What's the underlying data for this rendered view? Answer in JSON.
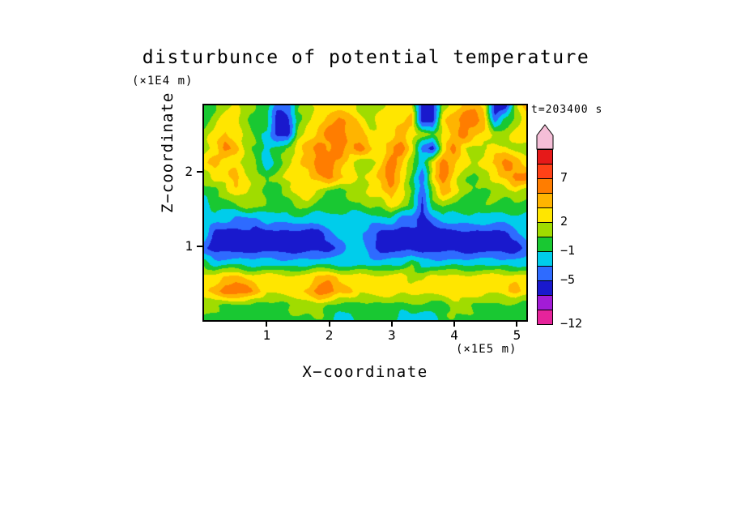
{
  "title": "disturbunce of potential temperature",
  "time_label": "t=203400 s",
  "y_axis_unit": "(×1E4 m)",
  "x_axis_unit": "(×1E5 m)",
  "x_axis": {
    "label": "X−coordinate",
    "ticks": [
      "1",
      "2",
      "3",
      "4",
      "5"
    ],
    "tick_values": [
      1,
      2,
      3,
      4,
      5
    ],
    "range": [
      0,
      5.15
    ]
  },
  "z_axis": {
    "label": "Z−coordinate",
    "ticks": [
      "1",
      "2"
    ],
    "tick_values": [
      1,
      2
    ],
    "range": [
      0,
      2.9
    ]
  },
  "colorbar": {
    "arrow_color": "#F5BED7",
    "labels": [
      {
        "text": "7",
        "level_index": 10
      },
      {
        "text": "2",
        "level_index": 7
      },
      {
        "text": "−1",
        "level_index": 5
      },
      {
        "text": "−5",
        "level_index": 3
      },
      {
        "text": "−12",
        "level_index": 0
      }
    ]
  },
  "chart_data": {
    "type": "heatmap",
    "title": "disturbunce of potential temperature",
    "xlabel": "X−coordinate (×1E5 m)",
    "ylabel": "Z−coordinate (×1E4 m)",
    "time": "t=203400 s",
    "x_range": [
      0,
      5.15
    ],
    "z_range": [
      0,
      2.9
    ],
    "levels": [
      -12,
      -9,
      -7,
      -5,
      -3,
      -1,
      0.5,
      2,
      3.5,
      5,
      7,
      9
    ],
    "level_top": 12,
    "colors": [
      "#E6239B",
      "#A21CD6",
      "#1919CD",
      "#2E6BFF",
      "#00CDEB",
      "#19C832",
      "#A0DC00",
      "#FFE600",
      "#FFB400",
      "#FF7D00",
      "#FF4117",
      "#E61919"
    ],
    "overflow_color": "#F5BED7",
    "grid_orientation": "rows from z=2.9 (top) to z=0 (bottom), 32 columns x=0..5.15",
    "grid_values": [
      [
        0,
        0,
        1.2,
        2.7,
        1.2,
        0,
        0,
        -4,
        -4,
        0,
        1.2,
        2.7,
        2.7,
        2.7,
        2.7,
        1.2,
        1.2,
        1.2,
        2.7,
        2.7,
        2.7,
        -6,
        -6,
        1.2,
        2.7,
        4.2,
        4.2,
        2.7,
        -6,
        -6,
        1.2,
        4.2
      ],
      [
        0,
        1.2,
        2.7,
        2.7,
        1.2,
        0,
        0,
        -6,
        -6,
        0,
        1.2,
        2.7,
        4.2,
        6,
        4.2,
        2.7,
        1.2,
        2.7,
        2.7,
        2.7,
        4.2,
        -6,
        -6,
        2.7,
        4.2,
        6,
        6,
        4.2,
        -4,
        0,
        1.2,
        2.7
      ],
      [
        1.2,
        2.7,
        4.2,
        2.7,
        1.2,
        0,
        -2,
        -6,
        -6,
        1.2,
        2.7,
        4.2,
        6,
        6,
        4.2,
        4.2,
        2.7,
        2.7,
        2.7,
        4.2,
        2.7,
        1.2,
        0,
        2.7,
        4.2,
        6,
        4.2,
        2.7,
        1.2,
        1.2,
        2.7,
        2.7
      ],
      [
        1.2,
        2.7,
        6,
        4.2,
        1.2,
        0,
        -2,
        0,
        1.2,
        2.7,
        4.2,
        6,
        4.2,
        6,
        4.2,
        6,
        4.2,
        2.7,
        4.2,
        6,
        2.7,
        -4,
        -6,
        2.7,
        6,
        2.7,
        1.2,
        1.2,
        2.7,
        2.7,
        1.2,
        1.2
      ],
      [
        2.7,
        4.2,
        2.7,
        2.7,
        1.2,
        0,
        -2,
        0,
        1.2,
        2.7,
        4.2,
        6,
        6,
        4.2,
        2.7,
        1.2,
        1.2,
        2.7,
        6,
        4.2,
        1.2,
        -2,
        2.7,
        6,
        4.2,
        2.7,
        1.2,
        2.7,
        4.2,
        6,
        4.2,
        2.7
      ],
      [
        1.2,
        2.7,
        2.7,
        4.2,
        2.7,
        1.2,
        0,
        1.2,
        2.7,
        2.7,
        2.7,
        4.2,
        6,
        4.2,
        2.7,
        1.2,
        2.7,
        4.2,
        6,
        2.7,
        0,
        -4,
        2.7,
        6,
        2.7,
        1.2,
        0,
        1.2,
        2.7,
        4.2,
        6,
        6
      ],
      [
        0,
        0,
        1.2,
        2.7,
        2.7,
        1.2,
        0,
        0,
        1.2,
        2.7,
        2.7,
        1.2,
        0,
        0,
        1.2,
        1.2,
        2.7,
        2.7,
        4.2,
        2.7,
        0,
        -4,
        1.2,
        4.2,
        2.7,
        1.2,
        0,
        0,
        1.2,
        1.2,
        2.7,
        1.2
      ],
      [
        -2,
        0,
        0,
        0,
        1.2,
        1.2,
        0,
        0,
        0,
        1.2,
        1.2,
        0,
        0,
        0,
        0,
        0,
        1.2,
        1.2,
        2.7,
        1.2,
        0,
        -6,
        0,
        1.2,
        0,
        0,
        0,
        0,
        0,
        0,
        0,
        0
      ],
      [
        -2,
        -2,
        -2,
        -4,
        -4,
        -4,
        -2,
        -2,
        -2,
        -2,
        -2,
        -2,
        -2,
        -2,
        -2,
        -2,
        -2,
        -2,
        -2,
        -4,
        -4,
        -6,
        -4,
        -2,
        -2,
        -2,
        -2,
        -2,
        -2,
        -2,
        -2,
        -2
      ],
      [
        -2,
        -6,
        -6,
        -6,
        -6,
        -6,
        -6,
        -6,
        -6,
        -6,
        -6,
        -6,
        -4,
        -2,
        -2,
        -2,
        -4,
        -6,
        -6,
        -6,
        -6,
        -6,
        -6,
        -6,
        -6,
        -6,
        -6,
        -6,
        -6,
        -6,
        -4,
        -2
      ],
      [
        -4,
        -6,
        -6,
        -6,
        -6,
        -6,
        -6,
        -6,
        -6,
        -6,
        -6,
        -6,
        -6,
        -4,
        -2,
        -2,
        -4,
        -6,
        -6,
        -6,
        -6,
        -6,
        -6,
        -6,
        -6,
        -6,
        -6,
        -6,
        -6,
        -6,
        -6,
        -4
      ],
      [
        0,
        -2,
        -2,
        -2,
        -2,
        -2,
        -2,
        -2,
        -2,
        -2,
        -2,
        -2,
        -2,
        -2,
        -2,
        -2,
        -2,
        -2,
        -2,
        -2,
        0,
        -2,
        -2,
        -2,
        -2,
        -2,
        -2,
        -2,
        -2,
        -2,
        -2,
        -2
      ],
      [
        2.7,
        2.7,
        4.2,
        4.2,
        2.7,
        2.7,
        2.7,
        2.7,
        2.7,
        2.7,
        2.7,
        4.2,
        4.2,
        2.7,
        2.7,
        2.7,
        2.7,
        2.7,
        2.7,
        2.7,
        1.2,
        1.2,
        2.7,
        2.7,
        2.7,
        2.7,
        2.7,
        2.7,
        2.7,
        2.7,
        2.7,
        2.7
      ],
      [
        2.7,
        4.2,
        6,
        6,
        6,
        4.2,
        2.7,
        2.7,
        2.7,
        2.7,
        4.2,
        6,
        6,
        4.2,
        4.2,
        2.7,
        2.7,
        2.7,
        2.7,
        2.7,
        2.7,
        2.7,
        2.7,
        2.7,
        2.7,
        2.7,
        2.7,
        2.7,
        2.7,
        2.7,
        4.2,
        2.7
      ],
      [
        1.2,
        1.2,
        0,
        0,
        0,
        0,
        0,
        0,
        0,
        1.2,
        1.2,
        1.2,
        0,
        0,
        0,
        0,
        0,
        0,
        0,
        0,
        0,
        0,
        0,
        0,
        1.2,
        1.2,
        0,
        0,
        0,
        0,
        0,
        0
      ],
      [
        0,
        0,
        0,
        0,
        0,
        0,
        0,
        0,
        0,
        0,
        0,
        0,
        0,
        -1.8,
        -1.8,
        0,
        0,
        0,
        0,
        -1.8,
        -1.8,
        -1.8,
        -1.8,
        0,
        0,
        0,
        0,
        0,
        0,
        0,
        0,
        0
      ]
    ]
  }
}
